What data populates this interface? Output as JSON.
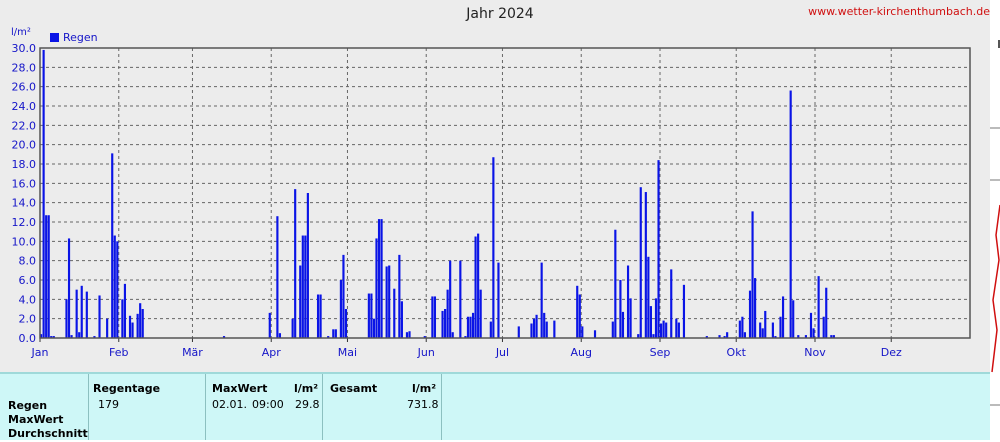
{
  "site": "www.wetter-kirchenthumbach.de",
  "chart_data": {
    "type": "bar",
    "title": "Jahr 2024",
    "ylabel": "l/m²",
    "ylim": [
      0,
      30
    ],
    "yticks": [
      "0.0",
      "2.0",
      "4.0",
      "6.0",
      "8.0",
      "10.0",
      "12.0",
      "14.0",
      "16.0",
      "18.0",
      "20.0",
      "22.0",
      "24.0",
      "26.0",
      "28.0",
      "30.0"
    ],
    "grid": true,
    "legend_position": "top-left",
    "month_labels": [
      "Jan",
      "Feb",
      "Mär",
      "Apr",
      "Mai",
      "Jun",
      "Jul",
      "Aug",
      "Sep",
      "Okt",
      "Nov",
      "Dez"
    ],
    "month_start_day": [
      1,
      32,
      61,
      92,
      122,
      153,
      183,
      214,
      245,
      275,
      306,
      336
    ],
    "days_in_year": 366,
    "series": [
      {
        "name": "Regen",
        "color": "#0a14e6",
        "points": [
          [
            1,
            0.4
          ],
          [
            2,
            29.8
          ],
          [
            3,
            12.7
          ],
          [
            4,
            12.7
          ],
          [
            5,
            0.2
          ],
          [
            6,
            0.2
          ],
          [
            11,
            4.0
          ],
          [
            12,
            10.3
          ],
          [
            13,
            0.3
          ],
          [
            15,
            5.0
          ],
          [
            16,
            0.6
          ],
          [
            17,
            5.4
          ],
          [
            19,
            4.8
          ],
          [
            22,
            0.2
          ],
          [
            24,
            4.4
          ],
          [
            27,
            2.0
          ],
          [
            29,
            19.1
          ],
          [
            30,
            10.6
          ],
          [
            31,
            10.0
          ],
          [
            33,
            4.0
          ],
          [
            34,
            5.6
          ],
          [
            36,
            2.3
          ],
          [
            37,
            1.6
          ],
          [
            39,
            2.5
          ],
          [
            40,
            3.6
          ],
          [
            41,
            3.0
          ],
          [
            73,
            0.2
          ],
          [
            91,
            2.6
          ],
          [
            94,
            12.6
          ],
          [
            95,
            0.5
          ],
          [
            100,
            2.0
          ],
          [
            101,
            15.4
          ],
          [
            103,
            7.5
          ],
          [
            104,
            10.6
          ],
          [
            105,
            10.6
          ],
          [
            106,
            15.0
          ],
          [
            110,
            4.5
          ],
          [
            111,
            4.5
          ],
          [
            114,
            0.2
          ],
          [
            116,
            0.9
          ],
          [
            117,
            0.9
          ],
          [
            119,
            6.0
          ],
          [
            120,
            8.6
          ],
          [
            121,
            3.0
          ],
          [
            130,
            4.6
          ],
          [
            131,
            4.6
          ],
          [
            132,
            2.0
          ],
          [
            133,
            10.3
          ],
          [
            134,
            12.3
          ],
          [
            135,
            12.3
          ],
          [
            137,
            7.4
          ],
          [
            138,
            7.5
          ],
          [
            140,
            5.1
          ],
          [
            142,
            8.6
          ],
          [
            143,
            3.8
          ],
          [
            145,
            0.6
          ],
          [
            146,
            0.7
          ],
          [
            152,
            0.2
          ],
          [
            155,
            4.3
          ],
          [
            156,
            4.3
          ],
          [
            159,
            2.8
          ],
          [
            160,
            3.0
          ],
          [
            161,
            5.0
          ],
          [
            162,
            8.0
          ],
          [
            163,
            0.6
          ],
          [
            166,
            8.0
          ],
          [
            168,
            0.2
          ],
          [
            169,
            2.2
          ],
          [
            170,
            2.2
          ],
          [
            171,
            2.6
          ],
          [
            172,
            10.5
          ],
          [
            173,
            10.8
          ],
          [
            174,
            5.0
          ],
          [
            178,
            1.7
          ],
          [
            179,
            18.7
          ],
          [
            181,
            7.8
          ],
          [
            189,
            1.2
          ],
          [
            194,
            1.5
          ],
          [
            195,
            2.0
          ],
          [
            196,
            2.4
          ],
          [
            198,
            7.8
          ],
          [
            199,
            2.6
          ],
          [
            200,
            1.7
          ],
          [
            203,
            1.8
          ],
          [
            212,
            5.4
          ],
          [
            213,
            4.5
          ],
          [
            214,
            1.2
          ],
          [
            219,
            0.8
          ],
          [
            226,
            1.7
          ],
          [
            227,
            11.2
          ],
          [
            229,
            6.0
          ],
          [
            230,
            2.7
          ],
          [
            232,
            7.5
          ],
          [
            233,
            4.1
          ],
          [
            236,
            0.4
          ],
          [
            237,
            15.6
          ],
          [
            239,
            15.1
          ],
          [
            240,
            8.4
          ],
          [
            241,
            3.3
          ],
          [
            242,
            0.4
          ],
          [
            243,
            4.1
          ],
          [
            244,
            18.4
          ],
          [
            245,
            1.5
          ],
          [
            246,
            1.8
          ],
          [
            247,
            1.6
          ],
          [
            249,
            7.1
          ],
          [
            251,
            2.0
          ],
          [
            252,
            1.6
          ],
          [
            254,
            5.5
          ],
          [
            263,
            0.2
          ],
          [
            268,
            0.3
          ],
          [
            270,
            0.2
          ],
          [
            271,
            0.6
          ],
          [
            276,
            1.8
          ],
          [
            277,
            2.2
          ],
          [
            278,
            0.6
          ],
          [
            280,
            4.9
          ],
          [
            281,
            13.1
          ],
          [
            282,
            6.2
          ],
          [
            284,
            1.6
          ],
          [
            285,
            1.0
          ],
          [
            286,
            2.8
          ],
          [
            289,
            1.6
          ],
          [
            290,
            0.2
          ],
          [
            292,
            2.2
          ],
          [
            293,
            4.3
          ],
          [
            296,
            25.6
          ],
          [
            297,
            3.9
          ],
          [
            299,
            0.3
          ],
          [
            302,
            0.3
          ],
          [
            304,
            2.6
          ],
          [
            305,
            1.0
          ],
          [
            307,
            6.4
          ],
          [
            309,
            2.2
          ],
          [
            310,
            5.2
          ],
          [
            312,
            0.3
          ],
          [
            313,
            0.3
          ]
        ]
      }
    ]
  },
  "stats": {
    "row_labels": [
      "Regen",
      "MaxWert",
      "Durchschnitt"
    ],
    "headers": {
      "regentage": "Regentage",
      "maxwert": "MaxWert",
      "maxwert_unit": "l/m²",
      "gesamt": "Gesamt",
      "gesamt_unit": "l/m²"
    },
    "values": {
      "regentage": "179",
      "maxwert_date": "02.01.",
      "maxwert_time": "09:00",
      "maxwert_value": "29.8",
      "gesamt": "731.8"
    }
  }
}
